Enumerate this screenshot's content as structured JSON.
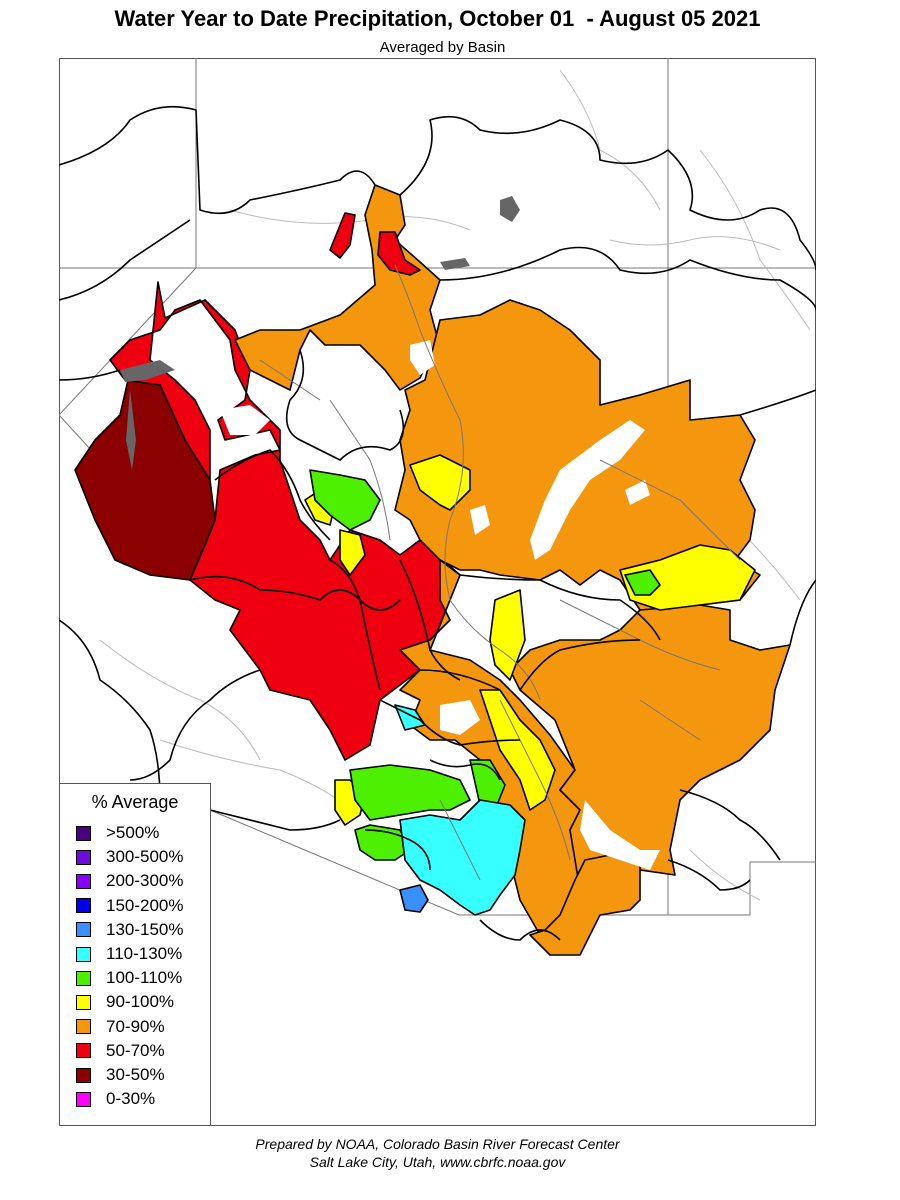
{
  "header": {
    "title": "Water Year to Date Precipitation, October 01  - August 05 2021",
    "subtitle": "Averaged by Basin"
  },
  "legend": {
    "title": "% Average",
    "items": [
      {
        "label": ">500%",
        "color": "#4b0082"
      },
      {
        "label": "300-500%",
        "color": "#6a0ddd"
      },
      {
        "label": "200-300%",
        "color": "#8a00ff"
      },
      {
        "label": "150-200%",
        "color": "#0000ee"
      },
      {
        "label": "130-150%",
        "color": "#3a8fff"
      },
      {
        "label": "110-130%",
        "color": "#38ffff"
      },
      {
        "label": "100-110%",
        "color": "#4cf000"
      },
      {
        "label": "90-100%",
        "color": "#ffff00"
      },
      {
        "label": "70-90%",
        "color": "#f5960f"
      },
      {
        "label": "50-70%",
        "color": "#ee0010"
      },
      {
        "label": "30-50%",
        "color": "#8b0000"
      },
      {
        "label": "0-30%",
        "color": "#ff00ff"
      }
    ]
  },
  "footer": {
    "line1": "Prepared by NOAA, Colorado Basin River Forecast Center",
    "line2": "Salt Lake City, Utah, www.cbrfc.noaa.gov"
  }
}
